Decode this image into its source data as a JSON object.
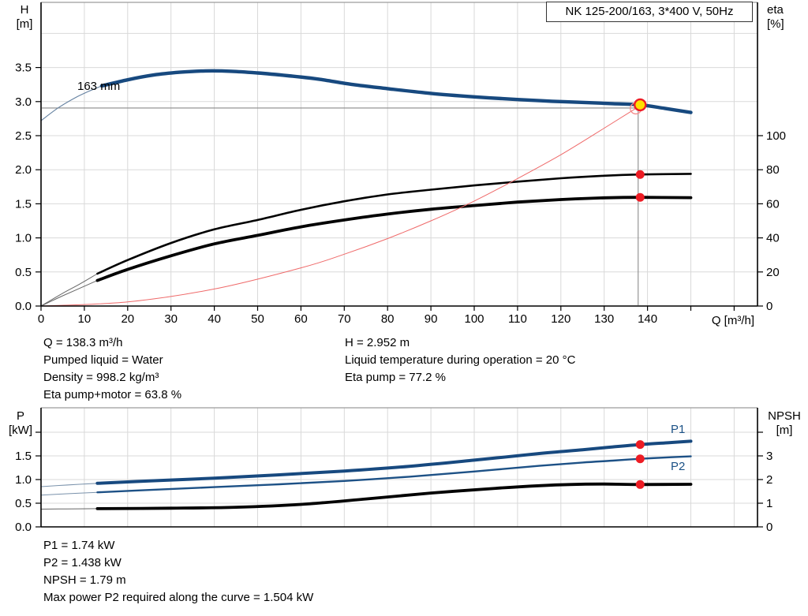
{
  "header": {
    "title": "NK 125-200/163, 3*400 V, 50Hz"
  },
  "labels": {
    "h": "H",
    "h_unit": "[m]",
    "eta": "eta",
    "eta_unit": "[%]",
    "q_axis": "Q [m³/h]",
    "p": "P",
    "p_unit": "[kW]",
    "npsh": "NPSH",
    "npsh_unit": "[m]",
    "impeller": "163 mm",
    "p1": "P1",
    "p2": "P2"
  },
  "results_top_left": [
    "Q = 138.3 m³/h",
    "Pumped liquid = Water",
    "Density = 998.2 kg/m³",
    "Eta pump+motor = 63.8 %"
  ],
  "results_top_right": [
    "H = 2.952 m",
    "Liquid temperature during operation = 20 °C",
    "Eta pump = 77.2 %"
  ],
  "results_bottom": [
    "P1 = 1.74 kW",
    "P2 = 1.438 kW",
    "NPSH = 1.79 m",
    "Max power P2 required along the curve = 1.504 kW"
  ],
  "colors": {
    "curve_blue": "#17497f",
    "curve_blue_thin": "#6380a0",
    "curve_black": "#000000",
    "curve_black_thin": "#666666",
    "system_red": "#ef6a6a",
    "marker_red": "#ed1c24",
    "marker_ring_red": "#f58a8a",
    "marker_yellow": "#ffdf00",
    "grid": "#d9d9d9",
    "border_gray": "#9c9c9c",
    "crosshair": "#8a8a8a",
    "label_blue": "#1b5186"
  },
  "chart_data": [
    {
      "type": "line",
      "title": "NK 125-200/163, 3*400 V, 50Hz",
      "impeller_label": "163 mm",
      "x_axis": {
        "label": "Q [m³/h]",
        "min": 0,
        "max": 165,
        "tick_step": 10,
        "labeled_max": 140
      },
      "y_left": {
        "label": "H [m]",
        "min": 0,
        "max": 4.45,
        "ticks": [
          0,
          0.5,
          1,
          1.5,
          2,
          2.5,
          3,
          3.5
        ],
        "grid_max": 4
      },
      "y_right": {
        "label": "eta [%]",
        "min": 0,
        "max": 178,
        "ticks": [
          0,
          20,
          40,
          60,
          80,
          100
        ]
      },
      "duty_point": {
        "Q": 138.3,
        "H": 2.952,
        "eta_pump": 77.2,
        "eta_pump_motor": 63.8
      },
      "series": [
        {
          "name": "eta-pump-curve-lead",
          "axis": "eta",
          "color": "#666666",
          "width": 1,
          "points": [
            [
              0,
              0
            ],
            [
              5,
              7.5
            ],
            [
              9,
              13
            ],
            [
              13,
              19
            ]
          ]
        },
        {
          "name": "eta-pump-curve",
          "axis": "eta",
          "color": "#000000",
          "width": 2.6,
          "points": [
            [
              13,
              19
            ],
            [
              20,
              27
            ],
            [
              30,
              37
            ],
            [
              40,
              45
            ],
            [
              50,
              50.5
            ],
            [
              60,
              56.5
            ],
            [
              70,
              61.5
            ],
            [
              80,
              65.5
            ],
            [
              90,
              68.3
            ],
            [
              100,
              70.8
            ],
            [
              110,
              73
            ],
            [
              120,
              75
            ],
            [
              130,
              76.5
            ],
            [
              138.3,
              77.2
            ],
            [
              150,
              77.6
            ]
          ]
        },
        {
          "name": "eta-pump-motor-curve-lead",
          "axis": "eta",
          "color": "#666666",
          "width": 1,
          "points": [
            [
              0,
              0
            ],
            [
              5,
              6
            ],
            [
              9,
              10.5
            ],
            [
              13,
              15
            ]
          ]
        },
        {
          "name": "eta-pump-motor-curve",
          "axis": "eta",
          "color": "#000000",
          "width": 3.8,
          "points": [
            [
              13,
              15
            ],
            [
              20,
              21.5
            ],
            [
              30,
              29.5
            ],
            [
              40,
              36.5
            ],
            [
              50,
              41.5
            ],
            [
              60,
              46.5
            ],
            [
              70,
              50.5
            ],
            [
              80,
              54
            ],
            [
              90,
              56.8
            ],
            [
              100,
              59
            ],
            [
              110,
              61
            ],
            [
              120,
              62.5
            ],
            [
              130,
              63.5
            ],
            [
              138.3,
              63.8
            ],
            [
              150,
              63.6
            ]
          ]
        },
        {
          "name": "system-curve",
          "axis": "H",
          "color": "#ef6a6a",
          "width": 1,
          "points": [
            [
              0,
              0
            ],
            [
              20,
              0.06
            ],
            [
              40,
              0.25
            ],
            [
              60,
              0.56
            ],
            [
              70,
              0.76
            ],
            [
              80,
              0.99
            ],
            [
              90,
              1.25
            ],
            [
              100,
              1.54
            ],
            [
              110,
              1.87
            ],
            [
              120,
              2.22
            ],
            [
              130,
              2.61
            ],
            [
              137.3,
              2.9
            ]
          ]
        },
        {
          "name": "h-curve-lead",
          "axis": "H",
          "color": "#6380a0",
          "width": 1.1,
          "points": [
            [
              0,
              2.72
            ],
            [
              4,
              2.91
            ],
            [
              8,
              3.06
            ],
            [
              11,
              3.15
            ],
            [
              14,
              3.23
            ]
          ]
        },
        {
          "name": "h-curve-163mm",
          "axis": "H",
          "color": "#17497f",
          "width": 4.4,
          "points": [
            [
              14,
              3.23
            ],
            [
              20,
              3.32
            ],
            [
              26,
              3.39
            ],
            [
              32,
              3.43
            ],
            [
              38,
              3.45
            ],
            [
              44,
              3.445
            ],
            [
              50,
              3.42
            ],
            [
              57,
              3.38
            ],
            [
              64,
              3.33
            ],
            [
              72,
              3.25
            ],
            [
              80,
              3.19
            ],
            [
              90,
              3.12
            ],
            [
              100,
              3.07
            ],
            [
              110,
              3.03
            ],
            [
              118,
              3.005
            ],
            [
              126,
              2.985
            ],
            [
              132,
              2.97
            ],
            [
              138.3,
              2.952
            ],
            [
              144,
              2.9
            ],
            [
              150,
              2.84
            ]
          ]
        }
      ]
    },
    {
      "type": "line",
      "x_axis": {
        "label": "Q [m³/h]",
        "min": 0,
        "max": 165,
        "tick_step": 10,
        "shared_with_top": true
      },
      "y_left": {
        "label": "P [kW]",
        "min": 0,
        "max": 2.5,
        "ticks": [
          0,
          0.5,
          1,
          1.5
        ],
        "unlabeled_ticks": [
          2
        ]
      },
      "y_right": {
        "label": "NPSH [m]",
        "min": 0,
        "max": 5,
        "ticks": [
          0,
          1,
          2,
          3
        ],
        "unlabeled_ticks": [
          4
        ]
      },
      "duty_point": {
        "Q": 138.3,
        "P1": 1.74,
        "P2": 1.438,
        "NPSH": 1.79
      },
      "series": [
        {
          "name": "p2-curve-lead",
          "axis": "P",
          "color": "#7a92ab",
          "width": 1,
          "points": [
            [
              0,
              0.67
            ],
            [
              6,
              0.7
            ],
            [
              13,
              0.73
            ]
          ]
        },
        {
          "name": "p2-curve",
          "axis": "P",
          "color": "#1d5186",
          "width": 2.4,
          "points": [
            [
              13,
              0.73
            ],
            [
              25,
              0.78
            ],
            [
              40,
              0.84
            ],
            [
              55,
              0.9
            ],
            [
              70,
              0.97
            ],
            [
              85,
              1.06
            ],
            [
              100,
              1.17
            ],
            [
              115,
              1.29
            ],
            [
              125,
              1.36
            ],
            [
              132,
              1.4
            ],
            [
              138.3,
              1.438
            ],
            [
              145,
              1.47
            ],
            [
              150,
              1.49
            ]
          ]
        },
        {
          "name": "p1-curve-lead",
          "axis": "P",
          "color": "#7a92ab",
          "width": 1.1,
          "points": [
            [
              0,
              0.85
            ],
            [
              6,
              0.885
            ],
            [
              13,
              0.92
            ]
          ]
        },
        {
          "name": "p1-curve",
          "axis": "P",
          "color": "#17497f",
          "width": 4,
          "points": [
            [
              13,
              0.92
            ],
            [
              25,
              0.97
            ],
            [
              40,
              1.03
            ],
            [
              55,
              1.1
            ],
            [
              70,
              1.18
            ],
            [
              85,
              1.28
            ],
            [
              100,
              1.41
            ],
            [
              115,
              1.55
            ],
            [
              125,
              1.63
            ],
            [
              132,
              1.69
            ],
            [
              138.3,
              1.74
            ],
            [
              145,
              1.78
            ],
            [
              150,
              1.81
            ]
          ]
        },
        {
          "name": "npsh-curve-lead",
          "axis": "NPSH",
          "color": "#666666",
          "width": 1,
          "points": [
            [
              0,
              0.75
            ],
            [
              6,
              0.76
            ],
            [
              13,
              0.77
            ]
          ]
        },
        {
          "name": "npsh-curve",
          "axis": "NPSH",
          "color": "#000000",
          "width": 3.8,
          "points": [
            [
              13,
              0.77
            ],
            [
              30,
              0.79
            ],
            [
              45,
              0.83
            ],
            [
              60,
              0.95
            ],
            [
              75,
              1.18
            ],
            [
              90,
              1.43
            ],
            [
              105,
              1.63
            ],
            [
              115,
              1.74
            ],
            [
              122,
              1.79
            ],
            [
              130,
              1.81
            ],
            [
              138.3,
              1.79
            ],
            [
              150,
              1.8
            ]
          ]
        }
      ]
    }
  ]
}
